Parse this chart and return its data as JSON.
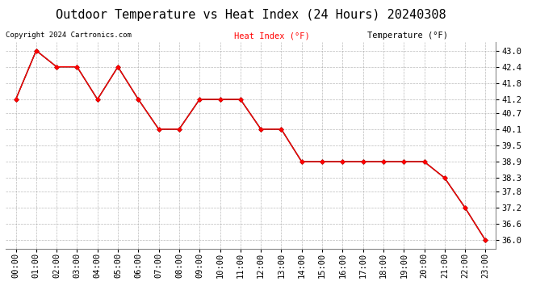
{
  "title": "Outdoor Temperature vs Heat Index (24 Hours) 20240308",
  "copyright": "Copyright 2024 Cartronics.com",
  "legend_heat": "Heat Index (°F)",
  "legend_temp": "Temperature (°F)",
  "hours": [
    "00:00",
    "01:00",
    "02:00",
    "03:00",
    "04:00",
    "05:00",
    "06:00",
    "07:00",
    "08:00",
    "09:00",
    "10:00",
    "11:00",
    "12:00",
    "13:00",
    "14:00",
    "15:00",
    "16:00",
    "17:00",
    "18:00",
    "19:00",
    "20:00",
    "21:00",
    "22:00",
    "23:00"
  ],
  "heat_index": [
    41.2,
    43.0,
    42.4,
    42.4,
    41.2,
    42.4,
    41.2,
    40.1,
    40.1,
    41.2,
    41.2,
    41.2,
    40.1,
    40.1,
    38.9,
    38.9,
    38.9,
    38.9,
    38.9,
    38.9,
    38.9,
    38.3,
    37.2,
    36.0
  ],
  "temperature": [
    41.2,
    43.0,
    42.4,
    42.4,
    41.2,
    42.4,
    41.2,
    40.1,
    40.1,
    41.2,
    41.2,
    41.2,
    40.1,
    40.1,
    38.9,
    38.9,
    38.9,
    38.9,
    38.9,
    38.9,
    38.9,
    38.3,
    37.2,
    36.0
  ],
  "heat_color": "#ff0000",
  "temp_color": "#000000",
  "background_color": "#ffffff",
  "grid_color": "#aaaaaa",
  "ymin": 35.7,
  "ymax": 43.3,
  "yticks": [
    43.0,
    42.4,
    41.8,
    41.2,
    40.7,
    40.1,
    39.5,
    38.9,
    38.3,
    37.8,
    37.2,
    36.6,
    36.0
  ],
  "title_fontsize": 11,
  "label_fontsize": 7.5,
  "copyright_fontsize": 6.5,
  "legend_fontsize": 7.5
}
